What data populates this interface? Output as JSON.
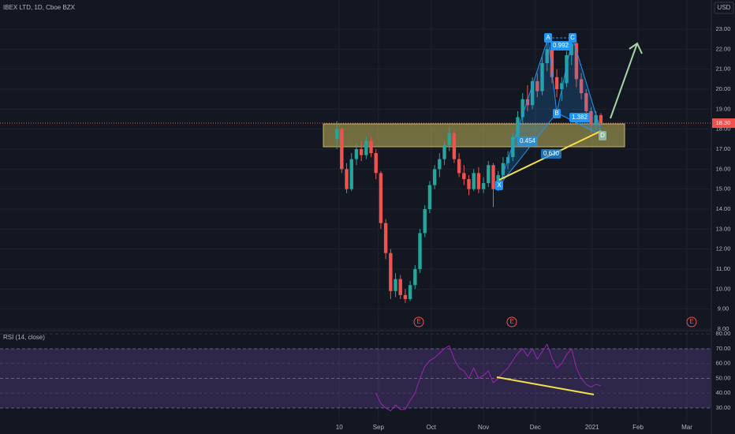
{
  "chart_data": [
    {
      "type": "candlestick",
      "title": "IBEX LTD, 1D, Cboe BZX",
      "currency": "USD",
      "x": [
        0,
        1,
        2,
        3,
        4,
        5,
        6,
        7,
        8,
        9,
        10,
        11,
        12,
        13,
        14,
        15,
        16,
        17,
        18,
        19,
        20,
        21,
        22,
        23,
        24,
        25,
        26,
        27,
        28,
        29,
        30,
        31,
        32,
        33,
        34,
        35,
        36,
        37,
        38,
        39,
        40,
        41,
        42,
        43,
        44,
        45,
        46,
        47,
        48,
        49,
        50,
        51,
        52,
        53,
        54
      ],
      "candles": [
        [
          17.5,
          18.4,
          17.0,
          18.0
        ],
        [
          18.0,
          18.1,
          15.8,
          16.0
        ],
        [
          16.0,
          16.3,
          14.8,
          15.0
        ],
        [
          15.0,
          16.8,
          14.9,
          16.5
        ],
        [
          16.5,
          17.3,
          16.2,
          17.0
        ],
        [
          17.0,
          17.4,
          16.4,
          16.7
        ],
        [
          16.7,
          17.6,
          16.5,
          17.4
        ],
        [
          17.4,
          17.6,
          16.6,
          16.8
        ],
        [
          16.8,
          17.0,
          15.5,
          15.8
        ],
        [
          15.8,
          15.9,
          13.0,
          13.3
        ],
        [
          13.3,
          13.5,
          11.5,
          11.8
        ],
        [
          11.8,
          12.0,
          9.5,
          9.9
        ],
        [
          9.9,
          10.8,
          9.6,
          10.5
        ],
        [
          10.5,
          10.7,
          9.5,
          9.7
        ],
        [
          9.7,
          10.0,
          9.3,
          9.5
        ],
        [
          9.5,
          10.4,
          9.4,
          10.2
        ],
        [
          10.2,
          11.2,
          10.0,
          11.0
        ],
        [
          11.0,
          13.0,
          10.8,
          12.8
        ],
        [
          12.8,
          14.2,
          12.6,
          14.0
        ],
        [
          14.0,
          15.4,
          13.8,
          15.2
        ],
        [
          15.2,
          16.2,
          15.0,
          16.0
        ],
        [
          16.0,
          16.8,
          15.6,
          16.5
        ],
        [
          16.5,
          17.4,
          16.2,
          17.2
        ],
        [
          17.2,
          18.1,
          16.9,
          17.8
        ],
        [
          17.8,
          17.9,
          16.3,
          16.5
        ],
        [
          16.5,
          16.8,
          15.6,
          15.8
        ],
        [
          15.8,
          16.2,
          15.2,
          15.5
        ],
        [
          15.5,
          15.7,
          14.7,
          15.0
        ],
        [
          15.0,
          16.0,
          14.9,
          15.8
        ],
        [
          15.8,
          16.1,
          14.8,
          15.0
        ],
        [
          15.0,
          15.6,
          14.8,
          15.3
        ],
        [
          15.3,
          16.4,
          15.1,
          16.2
        ],
        [
          16.2,
          16.3,
          14.1,
          15.0
        ],
        [
          15.0,
          15.9,
          14.9,
          15.7
        ],
        [
          15.7,
          16.6,
          15.5,
          16.3
        ],
        [
          16.3,
          16.9,
          16.0,
          16.6
        ],
        [
          16.6,
          17.8,
          16.4,
          17.6
        ],
        [
          17.6,
          18.9,
          17.3,
          18.6
        ],
        [
          18.6,
          19.8,
          18.3,
          19.5
        ],
        [
          19.5,
          20.2,
          18.9,
          19.2
        ],
        [
          19.2,
          20.6,
          19.0,
          20.4
        ],
        [
          20.4,
          20.8,
          19.6,
          19.9
        ],
        [
          19.9,
          21.6,
          19.7,
          21.3
        ],
        [
          21.3,
          22.4,
          20.9,
          22.0
        ],
        [
          22.0,
          22.2,
          20.3,
          20.6
        ],
        [
          20.6,
          21.0,
          19.6,
          20.0
        ],
        [
          20.0,
          20.6,
          19.4,
          20.3
        ],
        [
          20.3,
          21.9,
          20.1,
          21.7
        ],
        [
          21.7,
          22.6,
          21.2,
          22.3
        ],
        [
          22.3,
          22.4,
          20.1,
          20.5
        ],
        [
          20.5,
          20.8,
          19.5,
          19.8
        ],
        [
          19.8,
          20.0,
          18.6,
          18.9
        ],
        [
          18.9,
          19.1,
          17.8,
          18.2
        ],
        [
          18.2,
          18.9,
          18.0,
          18.7
        ],
        [
          18.7,
          18.8,
          18.2,
          18.3
        ]
      ],
      "xlim": [
        -68.9,
        76.6
      ],
      "xticks": [
        {
          "value": 0.5,
          "label": "10"
        },
        {
          "value": 8.5,
          "label": "Sep"
        },
        {
          "value": 19.3,
          "label": "Oct"
        },
        {
          "value": 30,
          "label": "Nov"
        },
        {
          "value": 40.6,
          "label": "Dec"
        },
        {
          "value": 52.2,
          "label": "2021"
        },
        {
          "value": 61.6,
          "label": "Feb"
        },
        {
          "value": 71.6,
          "label": "Mar"
        }
      ],
      "ylim": [
        7.96,
        24.46
      ],
      "yticks": [
        {
          "value": 8,
          "label": "8.00"
        },
        {
          "value": 9,
          "label": "9.00"
        },
        {
          "value": 10,
          "label": "10.00"
        },
        {
          "value": 11,
          "label": "11.00"
        },
        {
          "value": 12,
          "label": "12.00"
        },
        {
          "value": 13,
          "label": "13.00"
        },
        {
          "value": 14,
          "label": "14.00"
        },
        {
          "value": 15,
          "label": "15.00"
        },
        {
          "value": 16,
          "label": "16.00"
        },
        {
          "value": 17,
          "label": "17.00"
        },
        {
          "value": 18,
          "label": "18.00"
        },
        {
          "value": 19,
          "label": "19.00"
        },
        {
          "value": 20,
          "label": "20.00"
        },
        {
          "value": 21,
          "label": "21.00"
        },
        {
          "value": 22,
          "label": "22.00"
        },
        {
          "value": 23,
          "label": "23.00"
        }
      ],
      "last_price": {
        "value": 18.3,
        "label": "18.30"
      },
      "up_color": "#26a69a",
      "down_color": "#ef5350",
      "pattern_labels": [
        "X",
        "A",
        "B",
        "C",
        "D",
        "0.992",
        "1.382",
        "0.454",
        "0.630"
      ],
      "earnings": [
        "E",
        "E",
        "E"
      ]
    },
    {
      "type": "line",
      "title": "RSI (14, close)",
      "color": "#9c27b0",
      "x": [
        0,
        1,
        2,
        3,
        4,
        5,
        6,
        7,
        8,
        9,
        10,
        11,
        12,
        13,
        14,
        15,
        16,
        17,
        18,
        19,
        20,
        21,
        22,
        23,
        24,
        25,
        26,
        27,
        28,
        29,
        30,
        31,
        32,
        33,
        34,
        35,
        36,
        37,
        38,
        39,
        40,
        41,
        42,
        43,
        44,
        45,
        46,
        47,
        48,
        49,
        50,
        51,
        52,
        53,
        54
      ],
      "values": [
        null,
        null,
        null,
        null,
        null,
        null,
        null,
        null,
        40,
        33,
        30,
        28,
        32,
        29,
        29,
        35,
        40,
        50,
        58,
        62,
        64,
        67,
        70,
        72,
        63,
        57,
        55,
        50,
        57,
        50,
        52,
        55,
        47,
        50,
        54,
        57,
        62,
        67,
        70,
        65,
        70,
        63,
        68,
        73,
        64,
        57,
        60,
        66,
        70,
        57,
        50,
        46,
        44,
        46,
        45
      ],
      "ylim": [
        20.4,
        81.7
      ],
      "yticks": [
        {
          "value": 30,
          "label": "30.00"
        },
        {
          "value": 40,
          "label": "40.00"
        },
        {
          "value": 50,
          "label": "50.00"
        },
        {
          "value": 60,
          "label": "60.00"
        },
        {
          "value": 70,
          "label": "70.00"
        },
        {
          "value": 80,
          "label": "80.00"
        }
      ]
    }
  ]
}
